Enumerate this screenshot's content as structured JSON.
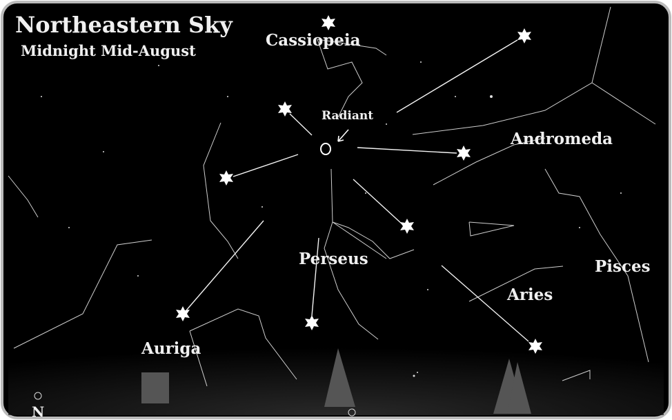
{
  "header": {
    "title": "Northeastern Sky",
    "subtitle": "Midnight Mid-August"
  },
  "labels": {
    "cassiopeia": "Cassiopeia",
    "radiant": "Radiant",
    "andromeda": "Andromeda",
    "perseus": "Perseus",
    "pisces": "Pisces",
    "aries": "Aries",
    "auriga": "Auriga"
  },
  "compass": "N"
}
